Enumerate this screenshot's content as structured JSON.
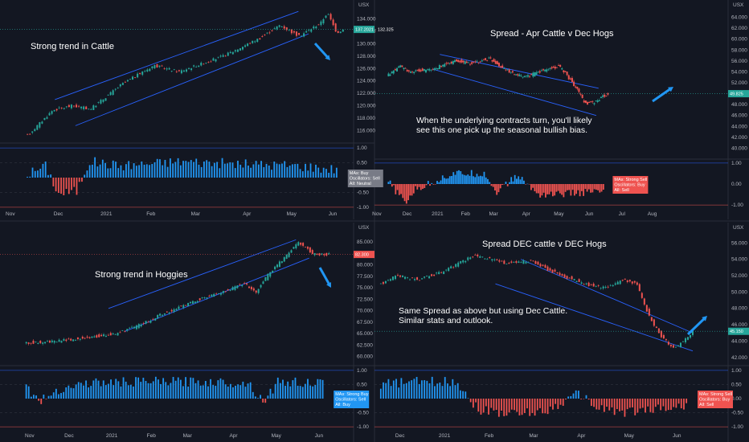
{
  "colors": {
    "background": "#131722",
    "bull": "#26a69a",
    "bear": "#ef5350",
    "trendline": "#2962ff",
    "arrow": "#2196f3",
    "hist_pos": "#2196f3",
    "hist_neg": "#ef5350"
  },
  "chart_data": [
    {
      "id": "cattle",
      "type": "candlestick",
      "annotation": "Strong trend in Cattle",
      "currency": "USX",
      "price_tag": "137.2021 · 132.325",
      "price_tag_color": "#26a69a",
      "ylim": [
        114,
        136
      ],
      "yticks": [
        116,
        118,
        120,
        122,
        124,
        126,
        128,
        130,
        132,
        134
      ],
      "ytick_labels": [
        "116.000",
        "118.000",
        "120.000",
        "122.000",
        "124.000",
        "126.000",
        "128.000",
        "130.000",
        "132.000",
        "134.000"
      ],
      "price_path": [
        [
          0,
          115.2
        ],
        [
          0.08,
          119.3
        ],
        [
          0.14,
          120.0
        ],
        [
          0.2,
          119.5
        ],
        [
          0.3,
          123.5
        ],
        [
          0.4,
          126.5
        ],
        [
          0.48,
          125.5
        ],
        [
          0.62,
          128.0
        ],
        [
          0.74,
          131.0
        ],
        [
          0.8,
          133.0
        ],
        [
          0.86,
          131.2
        ],
        [
          0.93,
          133.4
        ],
        [
          0.95,
          135.0
        ],
        [
          0.98,
          131.8
        ],
        [
          1.0,
          132.3
        ]
      ],
      "channel": [
        [
          [
            0.16,
            121.0
          ],
          [
            0.87,
            135.2
          ]
        ],
        [
          [
            0.22,
            116.8
          ],
          [
            0.9,
            131.6
          ]
        ]
      ],
      "xticks": [
        {
          "f": 0.03,
          "label": "Nov"
        },
        {
          "f": 0.17,
          "label": "Dec"
        },
        {
          "f": 0.31,
          "label": "2021"
        },
        {
          "f": 0.44,
          "label": "Feb"
        },
        {
          "f": 0.57,
          "label": "Mar"
        },
        {
          "f": 0.72,
          "label": "Apr"
        },
        {
          "f": 0.85,
          "label": "May"
        },
        {
          "f": 0.97,
          "label": "Jun"
        }
      ],
      "osc_yticks": [
        {
          "v": 1,
          "label": "1.00"
        },
        {
          "v": 0.5,
          "label": "0.50"
        },
        {
          "v": 0,
          "label": "0.00"
        },
        {
          "v": -0.5,
          "label": "-0.50"
        },
        {
          "v": -1,
          "label": "-1.00"
        }
      ],
      "osc_path": [
        [
          0,
          0.12
        ],
        [
          0.06,
          0.4
        ],
        [
          0.1,
          -0.55
        ],
        [
          0.16,
          -0.45
        ],
        [
          0.2,
          0.55
        ],
        [
          0.3,
          0.4
        ],
        [
          0.5,
          0.55
        ],
        [
          0.7,
          0.45
        ],
        [
          0.85,
          0.42
        ],
        [
          1.0,
          0.28
        ]
      ],
      "osc_box": {
        "lines": [
          "MAs: Buy",
          "Oscillators: Sell",
          "All: Neutral"
        ],
        "color": "#787b86"
      },
      "arrow_dir": "down"
    },
    {
      "id": "spread_apr",
      "type": "line",
      "annotation": "Spread - Apr Cattle v Dec Hogs",
      "subtext": [
        "When the underlying contracts turn, you'll likely",
        "see this one pick up the seasonal bullish bias."
      ],
      "currency": "USX",
      "price_tag": "49.825",
      "price_tag_color": "#26a69a",
      "ylim": [
        38,
        66
      ],
      "yticks": [
        40,
        42,
        44,
        46,
        48,
        50,
        52,
        54,
        56,
        58,
        60,
        62,
        64
      ],
      "ytick_labels": [
        "40.000",
        "42.000",
        "44.000",
        "46.000",
        "48.000",
        "50.000",
        "52.000",
        "54.000",
        "56.000",
        "58.000",
        "60.000",
        "62.000",
        "64.000"
      ],
      "price_path": [
        [
          0,
          53.5
        ],
        [
          0.05,
          55.0
        ],
        [
          0.1,
          54.0
        ],
        [
          0.2,
          54.5
        ],
        [
          0.3,
          56.0
        ],
        [
          0.38,
          55.5
        ],
        [
          0.46,
          56.5
        ],
        [
          0.55,
          54.0
        ],
        [
          0.62,
          53.0
        ],
        [
          0.72,
          54.5
        ],
        [
          0.78,
          55.0
        ],
        [
          0.84,
          52.0
        ],
        [
          0.9,
          48.0
        ],
        [
          0.94,
          48.5
        ],
        [
          1.0,
          50.0
        ]
      ],
      "channel": [
        [
          [
            0.28,
            57.2
          ],
          [
            0.96,
            51.0
          ]
        ],
        [
          [
            0.25,
            54.5
          ],
          [
            0.95,
            46.0
          ]
        ]
      ],
      "xticks": [
        {
          "f": 0.01,
          "label": "Nov"
        },
        {
          "f": 0.14,
          "label": "Dec"
        },
        {
          "f": 0.27,
          "label": "2021"
        },
        {
          "f": 0.39,
          "label": "Feb"
        },
        {
          "f": 0.51,
          "label": "Mar"
        },
        {
          "f": 0.65,
          "label": "Apr"
        },
        {
          "f": 0.79,
          "label": "May"
        },
        {
          "f": 0.92,
          "label": "Jun"
        },
        {
          "f": 1.06,
          "label": "Jul"
        },
        {
          "f": 1.19,
          "label": "Aug"
        }
      ],
      "x_extent": 0.66,
      "osc_yticks": [
        {
          "v": 1,
          "label": "1.00"
        },
        {
          "v": 0,
          "label": "0.00"
        },
        {
          "v": -1,
          "label": "-1.00"
        }
      ],
      "osc_path": [
        [
          0,
          0.1
        ],
        [
          0.08,
          -0.9
        ],
        [
          0.12,
          -0.3
        ],
        [
          0.3,
          0.5
        ],
        [
          0.45,
          0.5
        ],
        [
          0.5,
          -0.4
        ],
        [
          0.6,
          0.4
        ],
        [
          0.7,
          -0.5
        ],
        [
          0.85,
          -0.45
        ],
        [
          1.0,
          -0.35
        ]
      ],
      "osc_box": {
        "lines": [
          "MAs: Strong Sell",
          "Oscillators: Buy",
          "All: Sell"
        ],
        "color": "#ef5350"
      },
      "arrow_dir": "up"
    },
    {
      "id": "hogs",
      "type": "candlestick",
      "annotation": "Strong trend in Hoggies",
      "currency": "USX",
      "price_tag": "82.300",
      "price_tag_color": "#ef5350",
      "ylim": [
        58,
        87.5
      ],
      "yticks": [
        60,
        62.5,
        65,
        67.5,
        70,
        72.5,
        75,
        77.5,
        80,
        82.5,
        85
      ],
      "ytick_labels": [
        "60.000",
        "62.500",
        "65.000",
        "67.500",
        "70.000",
        "72.500",
        "75.000",
        "77.500",
        "80.000",
        "82.500",
        "85.000"
      ],
      "price_path": [
        [
          0,
          63.0
        ],
        [
          0.08,
          63.2
        ],
        [
          0.18,
          64.0
        ],
        [
          0.3,
          65.0
        ],
        [
          0.38,
          67.0
        ],
        [
          0.44,
          69.0
        ],
        [
          0.55,
          72.0
        ],
        [
          0.65,
          74.0
        ],
        [
          0.72,
          76.0
        ],
        [
          0.76,
          74.0
        ],
        [
          0.8,
          78.0
        ],
        [
          0.86,
          82.0
        ],
        [
          0.9,
          85.0
        ],
        [
          0.93,
          83.5
        ],
        [
          0.95,
          82.3
        ]
      ],
      "channel": [
        [
          [
            0.33,
            70.5
          ],
          [
            0.9,
            85.5
          ]
        ],
        [
          [
            0.38,
            65.5
          ],
          [
            0.94,
            81.5
          ]
        ]
      ],
      "xticks": [
        {
          "f": 0.09,
          "label": "Nov"
        },
        {
          "f": 0.21,
          "label": "Dec"
        },
        {
          "f": 0.34,
          "label": "2021"
        },
        {
          "f": 0.46,
          "label": "Feb"
        },
        {
          "f": 0.57,
          "label": "Mar"
        },
        {
          "f": 0.71,
          "label": "Apr"
        },
        {
          "f": 0.84,
          "label": "May"
        },
        {
          "f": 0.97,
          "label": "Jun"
        }
      ],
      "x_extent": 0.93,
      "osc_yticks": [
        {
          "v": 1,
          "label": "1.00"
        },
        {
          "v": 0.5,
          "label": "0.50"
        },
        {
          "v": 0,
          "label": "0.00"
        },
        {
          "v": -0.5,
          "label": "-0.50"
        },
        {
          "v": -1,
          "label": "-1.00"
        }
      ],
      "osc_path": [
        [
          0,
          0.4
        ],
        [
          0.05,
          -0.1
        ],
        [
          0.1,
          0.3
        ],
        [
          0.2,
          0.55
        ],
        [
          0.4,
          0.6
        ],
        [
          0.6,
          0.6
        ],
        [
          0.75,
          0.55
        ],
        [
          0.8,
          -0.1
        ],
        [
          0.85,
          0.6
        ],
        [
          1.0,
          0.55
        ]
      ],
      "osc_box": {
        "lines": [
          "MAs: Strong Buy",
          "Oscillators: Sell",
          "All: Buy"
        ],
        "color": "#2196f3"
      },
      "arrow_dir": "down"
    },
    {
      "id": "spread_dec",
      "type": "line",
      "annotation": "Spread DEC cattle v DEC Hogs",
      "subtext": [
        "Same Spread as above but using Dec Cattle.",
        "Similar stats and outlook."
      ],
      "currency": "USX",
      "price_tag": "45.150",
      "price_tag_color": "#26a69a",
      "ylim": [
        41,
        57.5
      ],
      "yticks": [
        42,
        44,
        46,
        48,
        50,
        52,
        54,
        56
      ],
      "ytick_labels": [
        "42.000",
        "44.000",
        "46.000",
        "48.000",
        "50.000",
        "52.000",
        "54.000",
        "56.000"
      ],
      "price_path": [
        [
          0,
          51.0
        ],
        [
          0.05,
          52.0
        ],
        [
          0.12,
          51.5
        ],
        [
          0.2,
          52.5
        ],
        [
          0.3,
          54.5
        ],
        [
          0.4,
          53.5
        ],
        [
          0.48,
          53.8
        ],
        [
          0.55,
          52.5
        ],
        [
          0.65,
          51.0
        ],
        [
          0.72,
          50.5
        ],
        [
          0.78,
          51.5
        ],
        [
          0.82,
          51.0
        ],
        [
          0.86,
          47.0
        ],
        [
          0.9,
          44.5
        ],
        [
          0.94,
          43.0
        ],
        [
          0.97,
          44.0
        ],
        [
          1.0,
          45.2
        ]
      ],
      "channel": [
        [
          [
            0.46,
            54.0
          ],
          [
            1.0,
            45.0
          ]
        ],
        [
          [
            0.38,
            51.0
          ],
          [
            1.0,
            42.8
          ]
        ]
      ],
      "xticks": [
        {
          "f": 0.08,
          "label": "Dec"
        },
        {
          "f": 0.22,
          "label": "2021"
        },
        {
          "f": 0.36,
          "label": "Feb"
        },
        {
          "f": 0.5,
          "label": "Mar"
        },
        {
          "f": 0.65,
          "label": "Apr"
        },
        {
          "f": 0.8,
          "label": "May"
        },
        {
          "f": 0.95,
          "label": "Jun"
        }
      ],
      "x_extent": 0.9,
      "osc_yticks": [
        {
          "v": 1,
          "label": "1.00"
        },
        {
          "v": 0.5,
          "label": "0.50"
        },
        {
          "v": 0,
          "label": "0.00"
        },
        {
          "v": -0.5,
          "label": "-0.50"
        },
        {
          "v": -1,
          "label": "-1.00"
        }
      ],
      "osc_path": [
        [
          0,
          0.5
        ],
        [
          0.1,
          0.6
        ],
        [
          0.25,
          0.6
        ],
        [
          0.32,
          -0.4
        ],
        [
          0.45,
          -0.55
        ],
        [
          0.55,
          -0.4
        ],
        [
          0.65,
          0.2
        ],
        [
          0.7,
          -0.3
        ],
        [
          0.8,
          -0.5
        ],
        [
          0.9,
          -0.35
        ],
        [
          1.0,
          -0.3
        ]
      ],
      "osc_box": {
        "lines": [
          "MAs: Strong Sell",
          "Oscillators: Buy",
          "All: Sell"
        ],
        "color": "#ef5350"
      },
      "arrow_dir": "up"
    }
  ]
}
